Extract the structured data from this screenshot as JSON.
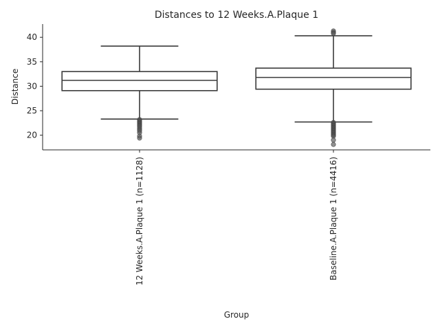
{
  "chart_data": {
    "type": "box",
    "title": "Distances to 12 Weeks.A.Plaque 1",
    "xlabel": "Group",
    "ylabel": "Distance",
    "ylim": [
      17,
      42.7
    ],
    "yticks": [
      20,
      25,
      30,
      35,
      40
    ],
    "categories": [
      "12 Weeks.A.Plaque 1 (n=1128)",
      "Baseline.A.Plaque 1 (n=4416)"
    ],
    "boxes": [
      {
        "name": "12 Weeks.A.Plaque 1 (n=1128)",
        "whisker_low": 23.3,
        "q1": 29.1,
        "median": 31.2,
        "q3": 33.0,
        "whisker_high": 38.2,
        "outliers": [
          23.2,
          23.0,
          22.8,
          22.6,
          22.4,
          22.2,
          22.0,
          21.8,
          21.5,
          21.2,
          20.9,
          20.5,
          19.8,
          19.4
        ]
      },
      {
        "name": "Baseline.A.Plaque 1 (n=4416)",
        "whisker_low": 22.7,
        "q1": 29.4,
        "median": 31.8,
        "q3": 33.7,
        "whisker_high": 40.3,
        "outliers": [
          41.3,
          41.0,
          40.8,
          22.6,
          22.4,
          22.2,
          22.0,
          21.8,
          21.6,
          21.4,
          21.2,
          21.0,
          20.8,
          20.6,
          20.4,
          20.2,
          20.0,
          19.8,
          19.0,
          18.1
        ]
      }
    ]
  }
}
